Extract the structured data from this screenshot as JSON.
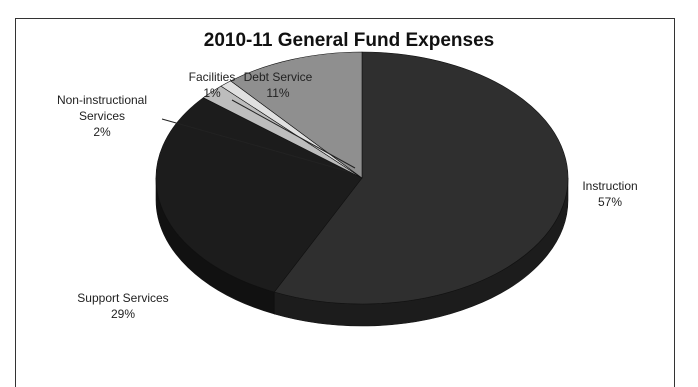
{
  "chart_data": {
    "type": "pie",
    "title": "2010-11 General Fund Expenses",
    "categories": [
      "Instruction",
      "Support Services",
      "Non-instructional Services",
      "Facilities",
      "Debt Service"
    ],
    "values": [
      57,
      29,
      2,
      1,
      11
    ],
    "value_labels": [
      "57%",
      "29%",
      "2%",
      "1%",
      "11%"
    ],
    "colors": [
      "#2f2f2f",
      "#1c1c1c",
      "#bdbdbd",
      "#e0e0e0",
      "#8f8f8f"
    ],
    "label_lines": [
      [
        "Instruction",
        "57%"
      ],
      [
        "Support Services",
        "29%"
      ],
      [
        "Non-instructional",
        "Services",
        "2%"
      ],
      [
        "Facilities",
        "1%"
      ],
      [
        "Debt Service",
        "11%"
      ]
    ],
    "style": "3d-pie",
    "start": "12 o'clock, clockwise",
    "legend": "none"
  }
}
